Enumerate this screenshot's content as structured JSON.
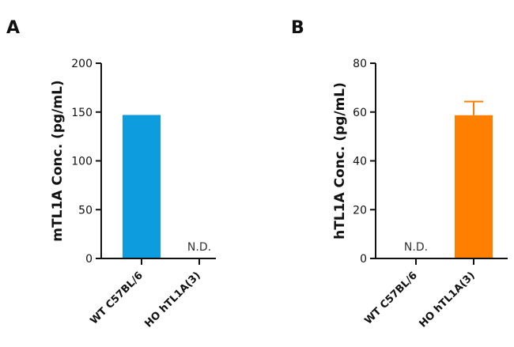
{
  "chart_data": [
    {
      "panel": "A",
      "type": "bar",
      "categories": [
        "WT C57BL/6",
        "HO hTL1A(3)"
      ],
      "values": [
        147,
        null
      ],
      "annotations": [
        null,
        "N.D."
      ],
      "error": [
        null,
        null
      ],
      "colors": [
        "#0d9ddf",
        null
      ],
      "ylabel": "mTL1A Conc. (pg/mL)",
      "ylim": [
        0,
        200
      ],
      "yticks": [
        0,
        50,
        100,
        150,
        200
      ]
    },
    {
      "panel": "B",
      "type": "bar",
      "categories": [
        "WT C57BL/6",
        "HO hTL1A(3)"
      ],
      "values": [
        null,
        58.7
      ],
      "annotations": [
        "N.D.",
        null
      ],
      "error": [
        null,
        5.6
      ],
      "colors": [
        null,
        "#ff7f00"
      ],
      "ylabel": "hTL1A Conc. (pg/mL)",
      "ylim": [
        0,
        80
      ],
      "yticks": [
        0,
        20,
        40,
        60,
        80
      ]
    }
  ]
}
